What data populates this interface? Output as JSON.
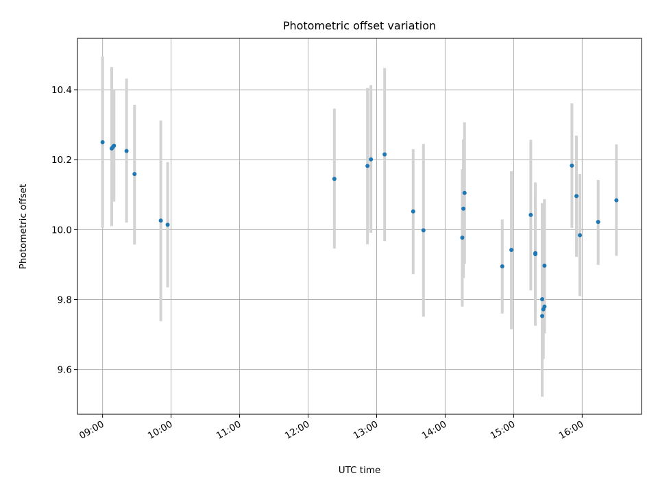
{
  "chart_data": {
    "type": "scatter",
    "title": "Photometric offset variation",
    "xlabel": "UTC time",
    "ylabel": "Photometric offset",
    "xlim": [
      "08:38",
      "16:52"
    ],
    "ylim": [
      9.472,
      10.547
    ],
    "x_ticks": [
      "09:00",
      "10:00",
      "11:00",
      "12:00",
      "13:00",
      "14:00",
      "15:00",
      "16:00"
    ],
    "y_ticks": [
      9.6,
      9.8,
      10.0,
      10.2,
      10.4
    ],
    "grid": true,
    "series": [
      {
        "marker": "point",
        "error_bars": "vertical",
        "points": [
          {
            "x": "09:00",
            "y": 10.25,
            "lo": 10.005,
            "hi": 10.495
          },
          {
            "x": "09:08",
            "y": 10.232,
            "lo": 10.01,
            "hi": 10.465
          },
          {
            "x": "09:09",
            "y": 10.236,
            "lo": 10.082,
            "hi": 10.4
          },
          {
            "x": "09:10",
            "y": 10.24,
            "lo": 10.08,
            "hi": 10.4
          },
          {
            "x": "09:21",
            "y": 10.225,
            "lo": 10.02,
            "hi": 10.432
          },
          {
            "x": "09:28",
            "y": 10.159,
            "lo": 9.957,
            "hi": 10.357
          },
          {
            "x": "09:51",
            "y": 10.026,
            "lo": 9.738,
            "hi": 10.312
          },
          {
            "x": "09:57",
            "y": 10.014,
            "lo": 9.835,
            "hi": 10.193
          },
          {
            "x": "12:23",
            "y": 10.145,
            "lo": 9.946,
            "hi": 10.346
          },
          {
            "x": "12:52",
            "y": 10.182,
            "lo": 9.958,
            "hi": 10.405
          },
          {
            "x": "12:55",
            "y": 10.201,
            "lo": 9.991,
            "hi": 10.413
          },
          {
            "x": "13:07",
            "y": 10.215,
            "lo": 9.967,
            "hi": 10.462
          },
          {
            "x": "13:32",
            "y": 10.052,
            "lo": 9.873,
            "hi": 10.23
          },
          {
            "x": "13:41",
            "y": 9.998,
            "lo": 9.751,
            "hi": 10.245
          },
          {
            "x": "14:15",
            "y": 9.977,
            "lo": 9.78,
            "hi": 10.173
          },
          {
            "x": "14:16",
            "y": 10.06,
            "lo": 9.862,
            "hi": 10.258
          },
          {
            "x": "14:17",
            "y": 10.105,
            "lo": 9.902,
            "hi": 10.307
          },
          {
            "x": "14:50",
            "y": 9.895,
            "lo": 9.76,
            "hi": 10.029
          },
          {
            "x": "14:58",
            "y": 9.942,
            "lo": 9.715,
            "hi": 10.167
          },
          {
            "x": "15:15",
            "y": 10.042,
            "lo": 9.826,
            "hi": 10.257
          },
          {
            "x": "15:19",
            "y": 9.933,
            "lo": 9.76,
            "hi": 10.105
          },
          {
            "x": "15:19",
            "y": 9.93,
            "lo": 9.725,
            "hi": 10.135
          },
          {
            "x": "15:25",
            "y": 9.753,
            "lo": 9.522,
            "hi": 10.076
          },
          {
            "x": "15:25",
            "y": 9.801,
            "lo": 9.522,
            "hi": 10.076
          },
          {
            "x": "15:26",
            "y": 9.772,
            "lo": 9.63,
            "hi": 10.056
          },
          {
            "x": "15:27",
            "y": 9.78,
            "lo": 9.703,
            "hi": 10.087
          },
          {
            "x": "15:27",
            "y": 9.897,
            "lo": 9.703,
            "hi": 10.087
          },
          {
            "x": "15:51",
            "y": 10.183,
            "lo": 10.005,
            "hi": 10.361
          },
          {
            "x": "15:55",
            "y": 10.096,
            "lo": 9.922,
            "hi": 10.269
          },
          {
            "x": "15:58",
            "y": 9.984,
            "lo": 9.81,
            "hi": 10.159
          },
          {
            "x": "16:14",
            "y": 10.022,
            "lo": 9.899,
            "hi": 10.142
          },
          {
            "x": "16:30",
            "y": 10.084,
            "lo": 9.925,
            "hi": 10.244
          }
        ]
      }
    ]
  }
}
